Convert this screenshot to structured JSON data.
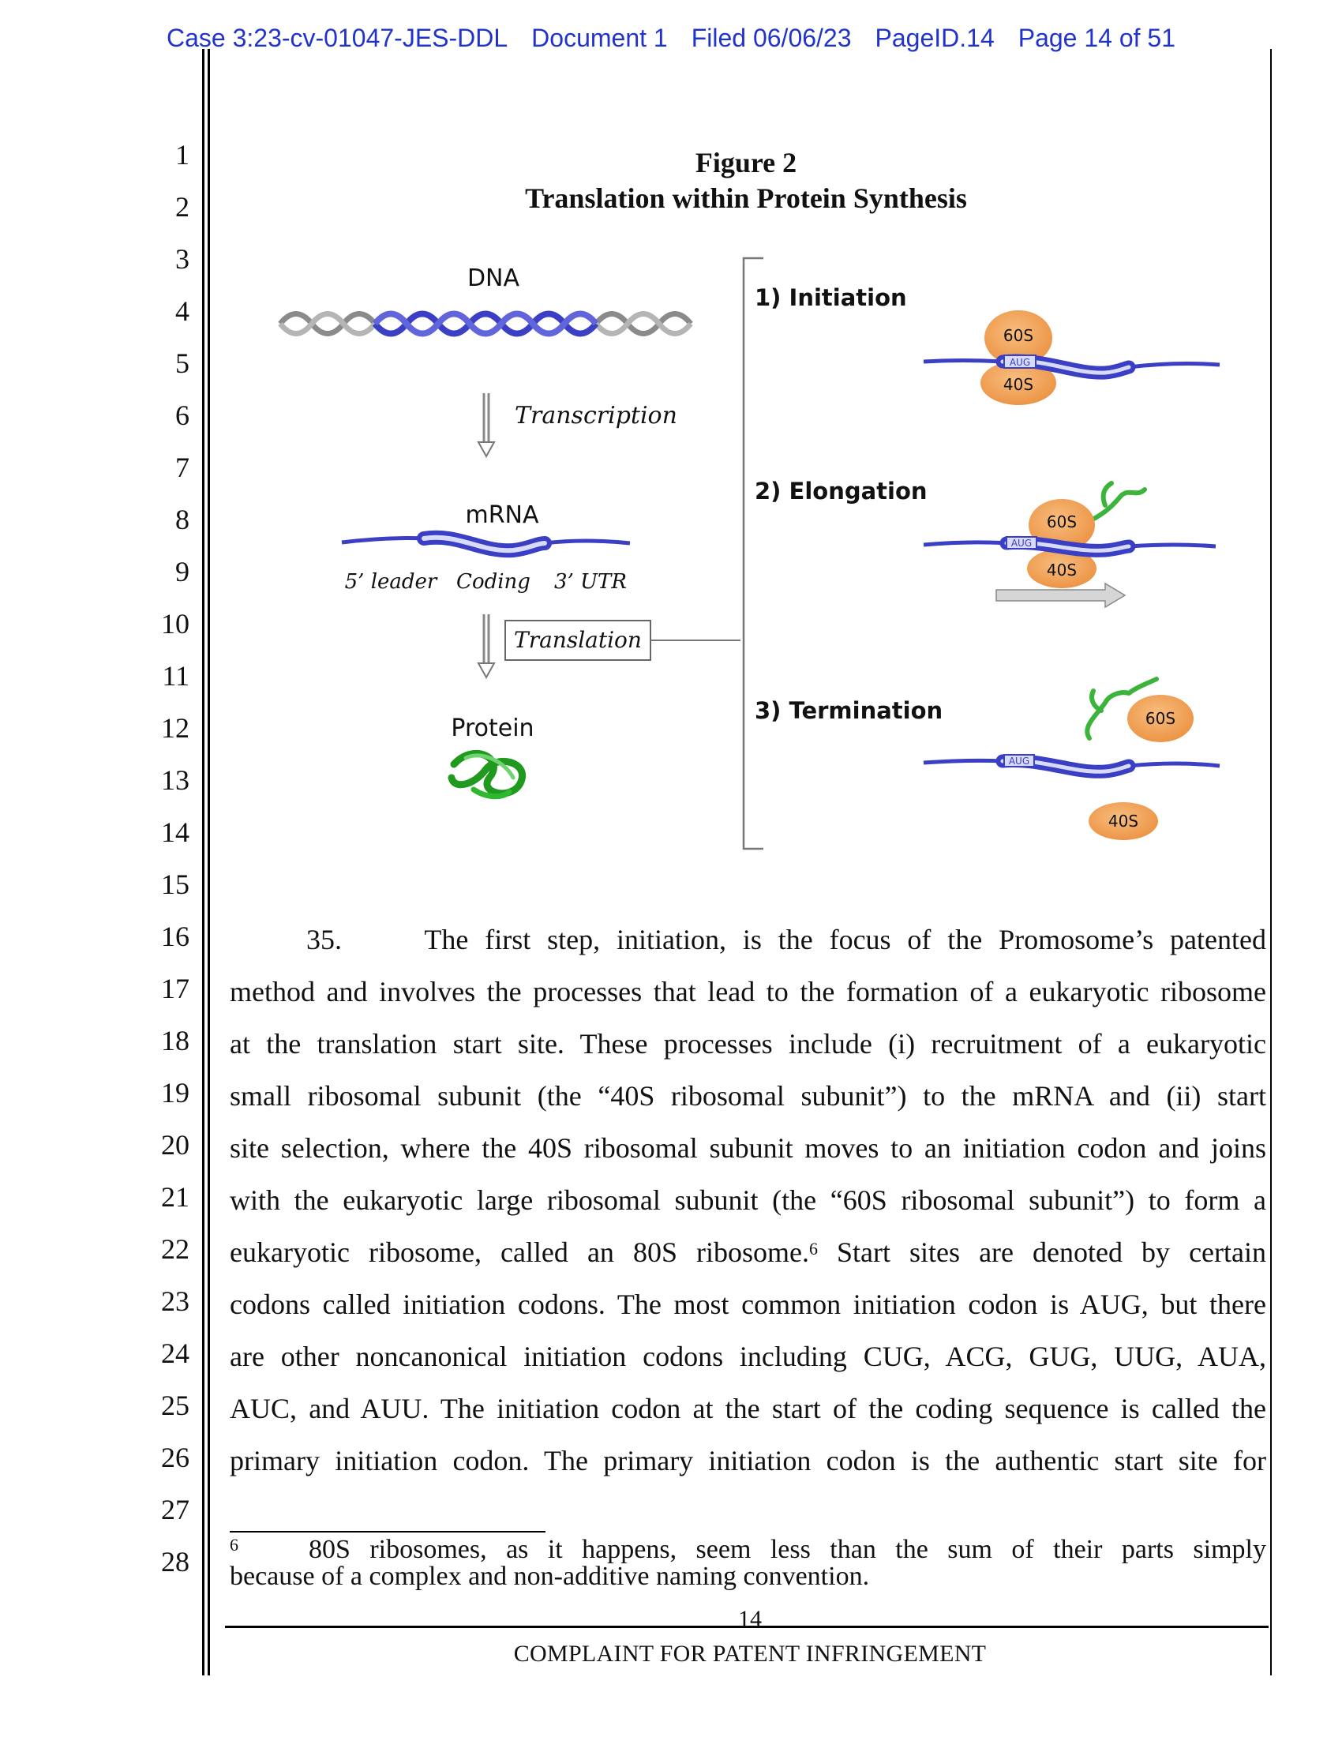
{
  "header": {
    "case": "Case 3:23-cv-01047-JES-DDL",
    "document": "Document 1",
    "filed": "Filed 06/06/23",
    "page_id": "PageID.14",
    "page": "Page 14 of 51"
  },
  "line_numbers": [
    "1",
    "2",
    "3",
    "4",
    "5",
    "6",
    "7",
    "8",
    "9",
    "10",
    "11",
    "12",
    "13",
    "14",
    "15",
    "16",
    "17",
    "18",
    "19",
    "20",
    "21",
    "22",
    "23",
    "24",
    "25",
    "26",
    "27",
    "28"
  ],
  "figure": {
    "title": "Figure 2",
    "subtitle": "Translation within Protein Synthesis",
    "labels": {
      "dna": "DNA",
      "transcription": "Transcription",
      "mrna": "mRNA",
      "leader": "5’ leader",
      "coding": "Coding",
      "utr": "3’ UTR",
      "translation": "Translation",
      "protein": "Protein"
    },
    "steps": {
      "initiation": "1) Initiation",
      "elongation": "2) Elongation",
      "termination": "3) Termination"
    },
    "subunits": {
      "large": "60S",
      "small": "40S",
      "codon": "AUG"
    },
    "colors": {
      "strand": "#3b3fc4",
      "subunit": "#f2a25a",
      "trna": "#3cb43c",
      "header_blue": "#2233cc"
    }
  },
  "body": {
    "lines": [
      "35.     The first step, initiation, is the focus of the Promosome’s patented",
      "method and involves the processes that lead to the formation of a eukaryotic ribosome",
      "at the translation start site. These processes include (i) recruitment of a eukaryotic",
      "small ribosomal subunit (the “40S ribosomal subunit”) to the mRNA and (ii) start",
      "site selection, where the 40S ribosomal subunit moves to an initiation codon and joins",
      "with the eukaryotic large ribosomal subunit (the “60S ribosomal subunit”) to form a",
      "eukaryotic ribosome, called an 80S ribosome.",
      "codons called initiation codons. The most common initiation codon is AUG, but there",
      "are other noncanonical initiation codons including CUG, ACG, GUG, UUG, AUA,",
      "AUC, and AUU. The initiation codon at the start of the coding sequence is called the",
      "primary initiation codon. The primary initiation codon is the authentic start site for"
    ],
    "line7_footnote_ref": "6",
    "line7_tail": " Start sites are denoted by certain"
  },
  "footnote": {
    "number": "6",
    "line1": "80S ribosomes, as it happens, seem less than the sum of their parts simply",
    "line2": "because of a complex and non-additive naming convention."
  },
  "footer": {
    "page_number": "14",
    "title": "COMPLAINT FOR PATENT INFRINGEMENT"
  }
}
